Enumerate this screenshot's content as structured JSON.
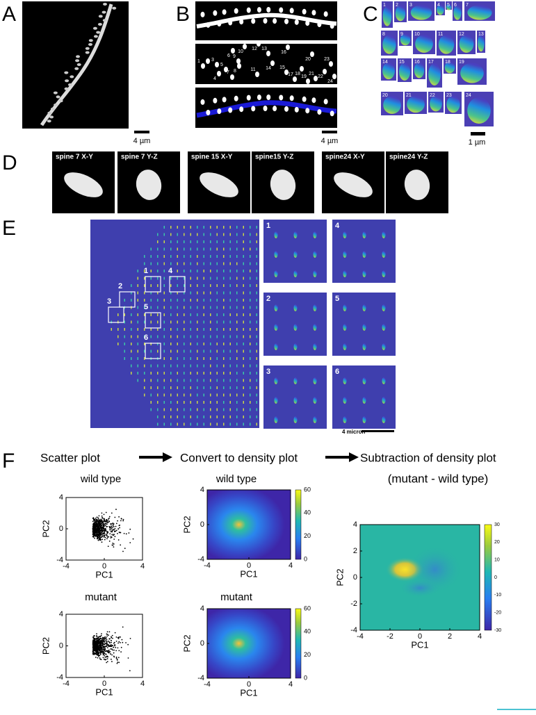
{
  "panel_a": {
    "label": "A",
    "scale": "4 µm"
  },
  "panel_b": {
    "label": "B",
    "scale": "4 µm",
    "spine_numbers": [
      "1",
      "2",
      "3",
      "4",
      "5",
      "6",
      "7",
      "8",
      "9",
      "10",
      "11",
      "12",
      "13",
      "14",
      "15",
      "16",
      "17",
      "18",
      "19",
      "20",
      "21",
      "22",
      "23",
      "24"
    ]
  },
  "panel_c": {
    "label": "C",
    "scale": "1 µm",
    "tile_numbers": [
      "1",
      "2",
      "3",
      "4",
      "5",
      "6",
      "7",
      "8",
      "9",
      "10",
      "11",
      "12",
      "13",
      "14",
      "15",
      "16",
      "17",
      "18",
      "19",
      "20",
      "21",
      "22",
      "23",
      "24"
    ]
  },
  "panel_d": {
    "label": "D",
    "views": [
      "spine 7 X-Y",
      "spine 7 Y-Z",
      "spine 15 X-Y",
      "spine15 Y-Z",
      "spine24 X-Y",
      "spine24 Y-Z"
    ]
  },
  "panel_e": {
    "label": "E",
    "box_numbers": [
      "1",
      "2",
      "3",
      "4",
      "5",
      "6"
    ],
    "inset_numbers": [
      "1",
      "2",
      "3",
      "4",
      "5",
      "6"
    ],
    "scale": "4 micron"
  },
  "panel_f": {
    "label": "F",
    "steps": [
      "Scatter plot",
      "Convert to density plot",
      "Subtraction of density plot"
    ],
    "subtitle": "(mutant - wild type)",
    "plots": [
      {
        "kind": "scatter",
        "title": "wild type",
        "xlabel": "PC1",
        "ylabel": "PC2",
        "xticks": [
          -4,
          0,
          4
        ],
        "yticks": [
          -4,
          0,
          4
        ]
      },
      {
        "kind": "scatter",
        "title": "mutant",
        "xlabel": "PC1",
        "ylabel": "PC2",
        "xticks": [
          -4,
          0,
          4
        ],
        "yticks": [
          -4,
          0,
          4
        ]
      },
      {
        "kind": "density",
        "title": "wild type",
        "xlabel": "PC1",
        "ylabel": "PC2",
        "xticks": [
          -4,
          0,
          4
        ],
        "yticks": [
          -4,
          0,
          4
        ],
        "colorbar_ticks": [
          0,
          20,
          40,
          60
        ]
      },
      {
        "kind": "density",
        "title": "mutant",
        "xlabel": "PC1",
        "ylabel": "PC2",
        "xticks": [
          -4,
          0,
          4
        ],
        "yticks": [
          -4,
          0,
          4
        ],
        "colorbar_ticks": [
          0,
          20,
          40,
          60
        ]
      },
      {
        "kind": "difference",
        "xlabel": "PC1",
        "ylabel": "PC2",
        "xticks": [
          -4,
          -2,
          0,
          2,
          4
        ],
        "yticks": [
          -4,
          -2,
          0,
          2,
          4
        ],
        "colorbar_ticks": [
          -30,
          -20,
          -10,
          0,
          10,
          20,
          30
        ]
      }
    ]
  }
}
